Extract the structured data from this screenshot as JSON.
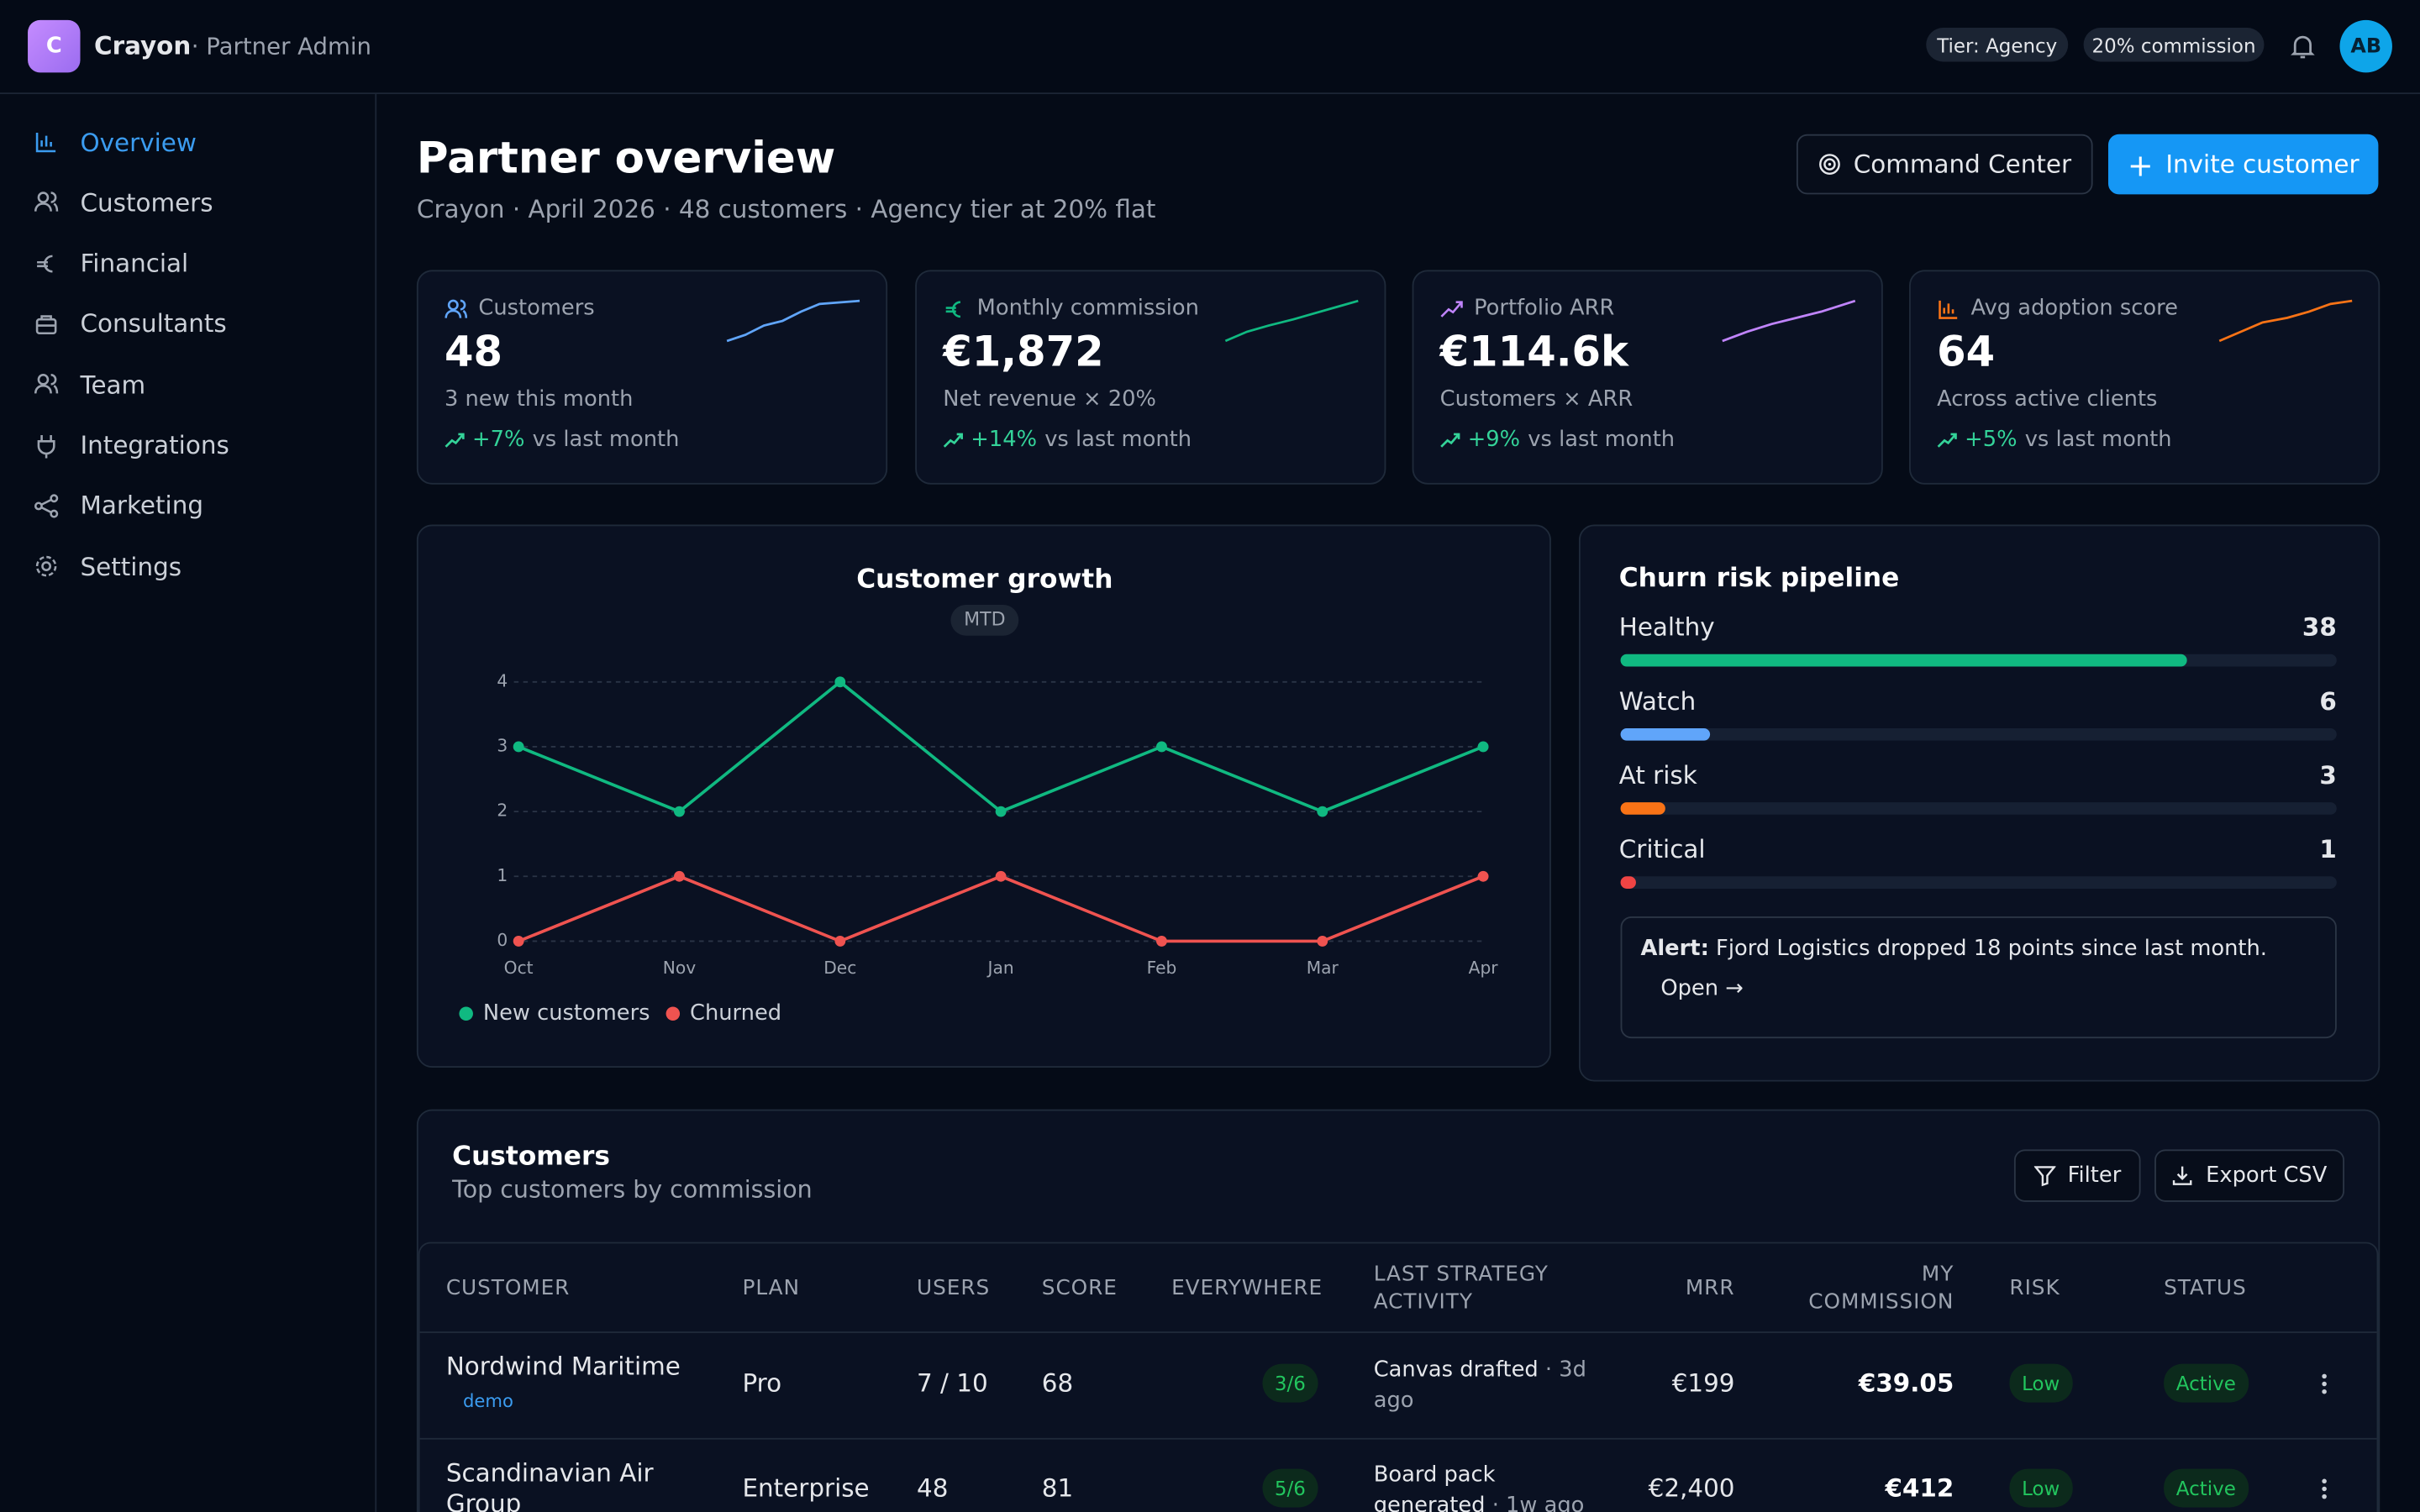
{
  "brand": {
    "logo": "C",
    "name": "Crayon",
    "section": "· Partner Admin"
  },
  "topbar": {
    "tier": "Tier: Agency",
    "commission": "20% commission",
    "avatar": "AB"
  },
  "nav": [
    "Overview",
    "Customers",
    "Financial",
    "Consultants",
    "Team",
    "Integrations",
    "Marketing",
    "Settings"
  ],
  "header": {
    "title": "Partner overview",
    "subtitle": "Crayon · April 2026 · 48 customers · Agency tier at 20% flat",
    "buttons": [
      "Command Center",
      "Invite customer"
    ]
  },
  "kpis": [
    {
      "label": "Customers",
      "value": "48",
      "note": "3 new this month",
      "delta": "+7%",
      "delta_note": "vs last month",
      "color": "#60a5fa"
    },
    {
      "label": "Monthly commission",
      "value": "€1,872",
      "note": "Net revenue × 20%",
      "delta": "+14%",
      "delta_note": "vs last month",
      "color": "#10b981"
    },
    {
      "label": "Portfolio ARR",
      "value": "€114.6k",
      "note": "Customers × ARR",
      "delta": "+9%",
      "delta_note": "vs last month",
      "color": "#c084fc"
    },
    {
      "label": "Avg adoption score",
      "value": "64",
      "note": "Across active clients",
      "delta": "+5%",
      "delta_note": "vs last month",
      "color": "#f97316"
    }
  ],
  "chart_data": {
    "type": "line",
    "title": "Customer growth",
    "badge": "MTD",
    "categories": [
      "Oct",
      "Nov",
      "Dec",
      "Jan",
      "Feb",
      "Mar",
      "Apr"
    ],
    "series": [
      {
        "name": "New customers",
        "color": "#10b981",
        "values": [
          3,
          2,
          4,
          2,
          3,
          2,
          3
        ]
      },
      {
        "name": "Churned",
        "color": "#ef5350",
        "values": [
          0,
          1,
          0,
          1,
          0,
          0,
          1
        ]
      }
    ],
    "ylim": [
      0,
      4
    ],
    "yticks": [
      0,
      1,
      2,
      3,
      4
    ],
    "grid": true
  },
  "churn": {
    "title": "Churn risk pipeline",
    "stages": [
      {
        "name": "Healthy",
        "count": 38,
        "color": "#10b981"
      },
      {
        "name": "Watch",
        "count": 6,
        "color": "#60a5fa"
      },
      {
        "name": "At risk",
        "count": 3,
        "color": "#f97316"
      },
      {
        "name": "Critical",
        "count": 1,
        "color": "#ef4444"
      }
    ],
    "alert": {
      "label": "Alert:",
      "text": "Fjord Logistics dropped 18 points since last month.",
      "action": "Open"
    }
  },
  "customers": {
    "title": "Customers",
    "subtitle": "Top customers by commission",
    "buttons": [
      "Filter",
      "Export CSV"
    ],
    "columns": [
      "CUSTOMER",
      "PLAN",
      "USERS",
      "SCORE",
      "EVERYWHERE",
      "LAST STRATEGY ACTIVITY",
      "MRR",
      "MY COMMISSION",
      "RISK",
      "STATUS"
    ],
    "rows": [
      {
        "name": "Nordwind Maritime",
        "tag": "demo",
        "plan": "Pro",
        "users": "7 / 10",
        "score": 68,
        "everywhere": "3/6",
        "activity": "Canvas drafted",
        "when": "· 3d ago",
        "mrr": "€199",
        "commission": "€39.05",
        "risk": "Low",
        "status": "Active"
      },
      {
        "name": "Scandinavian Air Group",
        "plan": "Enterprise",
        "users": "48",
        "score": 81,
        "everywhere": "5/6",
        "activity": "Board pack generated",
        "when": "· 1w ago",
        "mrr": "€2,400",
        "commission": "€412",
        "risk": "Low",
        "status": "Active"
      }
    ]
  }
}
